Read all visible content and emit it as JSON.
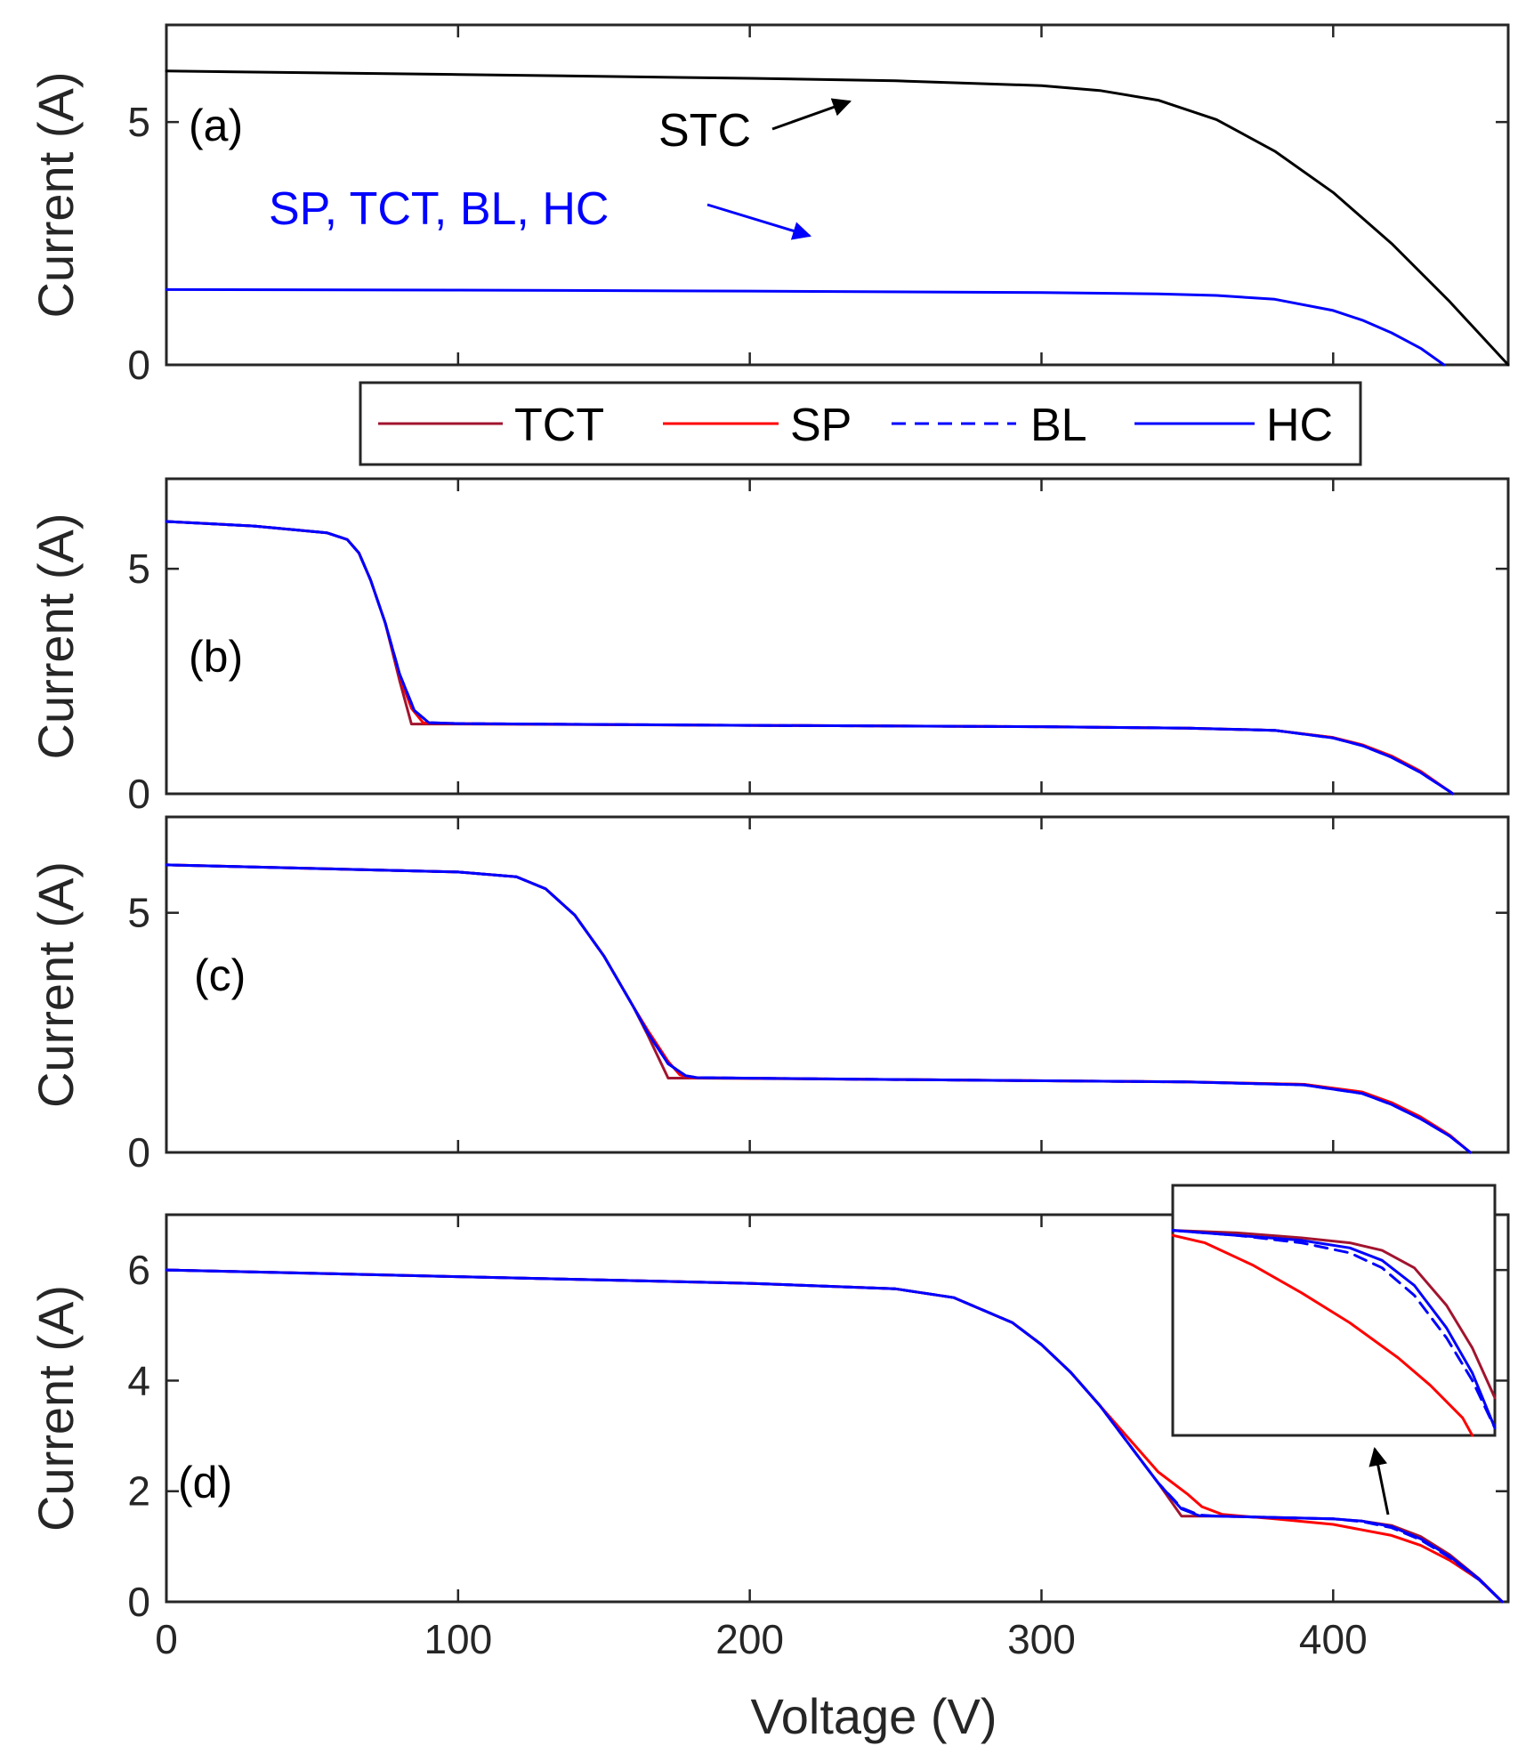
{
  "chart_data": {
    "type": "line",
    "xlabel": "Voltage (V)",
    "xlim": [
      0,
      460
    ],
    "xticks": [
      0,
      100,
      200,
      300,
      400
    ],
    "legend": {
      "placement": "top-center",
      "entries": [
        {
          "name": "TCT",
          "color": "#a2142f",
          "style": "solid"
        },
        {
          "name": "SP",
          "color": "#ff0000",
          "style": "solid"
        },
        {
          "name": "BL",
          "color": "#0000ff",
          "style": "dashed"
        },
        {
          "name": "HC",
          "color": "#0000ff",
          "style": "solid"
        }
      ]
    },
    "panels": [
      {
        "label": "(a)",
        "ylabel": "Current (A)",
        "ylim": [
          0,
          7
        ],
        "yticks": [
          0,
          5
        ],
        "annotations": [
          {
            "text": "STC",
            "color": "#000000"
          },
          {
            "text": "SP, TCT, BL, HC",
            "color": "#0000ff"
          }
        ],
        "series": [
          {
            "name": "STC",
            "color": "#000000",
            "style": "solid",
            "x": [
              0,
              100,
              200,
              250,
              300,
              320,
              340,
              360,
              380,
              400,
              420,
              440,
              460
            ],
            "y": [
              6.05,
              5.98,
              5.9,
              5.85,
              5.75,
              5.65,
              5.45,
              5.05,
              4.4,
              3.55,
              2.5,
              1.3,
              0
            ]
          },
          {
            "name": "SP, TCT, BL, HC",
            "color": "#0000ff",
            "style": "solid",
            "x": [
              0,
              100,
              200,
              300,
              340,
              360,
              380,
              400,
              410,
              420,
              430,
              438
            ],
            "y": [
              1.55,
              1.54,
              1.52,
              1.49,
              1.46,
              1.43,
              1.35,
              1.12,
              0.92,
              0.66,
              0.34,
              0
            ]
          }
        ]
      },
      {
        "label": "(b)",
        "ylabel": "Current (A)",
        "ylim": [
          0,
          7
        ],
        "yticks": [
          0,
          5
        ],
        "series": [
          {
            "name": "TCT",
            "color": "#a2142f",
            "style": "solid",
            "x": [
              0,
              30,
              55,
              62,
              66,
              70,
              75,
              80,
              84,
              86,
              100,
              200,
              300,
              350,
              380,
              400,
              410,
              420,
              430,
              440,
              441
            ],
            "y": [
              6.05,
              5.95,
              5.8,
              5.65,
              5.35,
              4.75,
              3.8,
              2.5,
              1.55,
              1.55,
              1.55,
              1.52,
              1.49,
              1.46,
              1.41,
              1.25,
              1.08,
              0.82,
              0.48,
              0.05,
              0
            ]
          },
          {
            "name": "SP",
            "color": "#ff0000",
            "style": "solid",
            "x": [
              0,
              30,
              55,
              62,
              66,
              70,
              75,
              80,
              84,
              88,
              100,
              200,
              300,
              350,
              380,
              400,
              410,
              420,
              430,
              440,
              441
            ],
            "y": [
              6.05,
              5.95,
              5.8,
              5.65,
              5.35,
              4.75,
              3.8,
              2.6,
              1.9,
              1.58,
              1.56,
              1.52,
              1.49,
              1.46,
              1.41,
              1.25,
              1.09,
              0.84,
              0.5,
              0.05,
              0
            ]
          },
          {
            "name": "BL",
            "color": "#0000ff",
            "style": "dashed",
            "x": [
              0,
              30,
              55,
              62,
              66,
              70,
              75,
              80,
              85,
              90,
              100,
              200,
              300,
              350,
              380,
              400,
              410,
              420,
              430,
              440,
              441
            ],
            "y": [
              6.05,
              5.95,
              5.8,
              5.65,
              5.35,
              4.75,
              3.8,
              2.65,
              1.85,
              1.58,
              1.56,
              1.52,
              1.49,
              1.46,
              1.41,
              1.24,
              1.07,
              0.81,
              0.47,
              0.05,
              0
            ]
          },
          {
            "name": "HC",
            "color": "#0000ff",
            "style": "solid",
            "x": [
              0,
              30,
              55,
              62,
              66,
              70,
              75,
              80,
              85,
              90,
              100,
              200,
              300,
              350,
              380,
              400,
              410,
              420,
              430,
              440,
              441
            ],
            "y": [
              6.05,
              5.95,
              5.8,
              5.65,
              5.35,
              4.75,
              3.8,
              2.65,
              1.85,
              1.58,
              1.56,
              1.52,
              1.49,
              1.46,
              1.41,
              1.24,
              1.07,
              0.81,
              0.47,
              0.05,
              0
            ]
          }
        ]
      },
      {
        "label": "(c)",
        "ylabel": "Current (A)",
        "ylim": [
          0,
          7
        ],
        "yticks": [
          0,
          5
        ],
        "series": [
          {
            "name": "TCT",
            "color": "#a2142f",
            "style": "solid",
            "x": [
              0,
              100,
              120,
              130,
              140,
              150,
              160,
              165,
              172,
              174,
              180,
              250,
              350,
              390,
              410,
              420,
              430,
              440,
              447
            ],
            "y": [
              6.0,
              5.85,
              5.75,
              5.5,
              4.95,
              4.1,
              3.05,
              2.45,
              1.55,
              1.55,
              1.55,
              1.52,
              1.47,
              1.42,
              1.25,
              1.02,
              0.72,
              0.35,
              0
            ]
          },
          {
            "name": "SP",
            "color": "#ff0000",
            "style": "solid",
            "x": [
              0,
              100,
              120,
              130,
              140,
              150,
              160,
              165,
              172,
              176,
              180,
              250,
              350,
              390,
              410,
              420,
              430,
              440,
              447
            ],
            "y": [
              6.0,
              5.85,
              5.75,
              5.5,
              4.95,
              4.1,
              3.05,
              2.55,
              1.9,
              1.62,
              1.56,
              1.52,
              1.47,
              1.42,
              1.26,
              1.04,
              0.74,
              0.36,
              0
            ]
          },
          {
            "name": "BL",
            "color": "#0000ff",
            "style": "dashed",
            "x": [
              0,
              100,
              120,
              130,
              140,
              150,
              160,
              165,
              172,
              178,
              182,
              250,
              350,
              390,
              410,
              420,
              430,
              440,
              447
            ],
            "y": [
              6.0,
              5.85,
              5.75,
              5.5,
              4.95,
              4.1,
              3.05,
              2.5,
              1.85,
              1.6,
              1.56,
              1.52,
              1.47,
              1.41,
              1.23,
              1.0,
              0.7,
              0.34,
              0
            ]
          },
          {
            "name": "HC",
            "color": "#0000ff",
            "style": "solid",
            "x": [
              0,
              100,
              120,
              130,
              140,
              150,
              160,
              165,
              172,
              178,
              182,
              250,
              350,
              390,
              410,
              420,
              430,
              440,
              447
            ],
            "y": [
              6.0,
              5.85,
              5.75,
              5.5,
              4.95,
              4.1,
              3.05,
              2.5,
              1.85,
              1.6,
              1.56,
              1.52,
              1.47,
              1.41,
              1.23,
              1.0,
              0.7,
              0.34,
              0
            ]
          }
        ]
      },
      {
        "label": "(d)",
        "ylabel": "Current (A)",
        "ylim": [
          0,
          7
        ],
        "yticks": [
          0,
          2,
          4,
          6
        ],
        "series": [
          {
            "name": "TCT",
            "color": "#a2142f",
            "style": "solid",
            "x": [
              0,
              100,
              200,
              250,
              270,
              290,
              300,
              310,
              320,
              330,
              340,
              348,
              350,
              360,
              400,
              410,
              420,
              430,
              440,
              450,
              458
            ],
            "y": [
              6.0,
              5.88,
              5.76,
              5.66,
              5.5,
              5.05,
              4.65,
              4.15,
              3.55,
              2.85,
              2.15,
              1.55,
              1.55,
              1.55,
              1.5,
              1.46,
              1.38,
              1.18,
              0.85,
              0.42,
              0
            ]
          },
          {
            "name": "SP",
            "color": "#ff0000",
            "style": "solid",
            "x": [
              0,
              100,
              200,
              250,
              270,
              290,
              300,
              310,
              320,
              330,
              340,
              350,
              355,
              362,
              380,
              400,
              420,
              430,
              440,
              450,
              458
            ],
            "y": [
              6.0,
              5.88,
              5.76,
              5.66,
              5.5,
              5.05,
              4.65,
              4.15,
              3.55,
              2.95,
              2.35,
              1.95,
              1.72,
              1.58,
              1.5,
              1.4,
              1.2,
              1.02,
              0.75,
              0.4,
              0
            ]
          },
          {
            "name": "BL",
            "color": "#0000ff",
            "style": "dashed",
            "x": [
              0,
              100,
              200,
              250,
              270,
              290,
              300,
              310,
              320,
              330,
              340,
              348,
              354,
              360,
              400,
              410,
              420,
              430,
              440,
              450,
              458
            ],
            "y": [
              6.0,
              5.88,
              5.76,
              5.66,
              5.5,
              5.05,
              4.65,
              4.15,
              3.55,
              2.85,
              2.15,
              1.7,
              1.57,
              1.55,
              1.5,
              1.45,
              1.34,
              1.12,
              0.8,
              0.4,
              0
            ]
          },
          {
            "name": "HC",
            "color": "#0000ff",
            "style": "solid",
            "x": [
              0,
              100,
              200,
              250,
              270,
              290,
              300,
              310,
              320,
              330,
              340,
              348,
              354,
              360,
              400,
              410,
              420,
              430,
              440,
              450,
              458
            ],
            "y": [
              6.0,
              5.88,
              5.76,
              5.66,
              5.5,
              5.05,
              4.65,
              4.15,
              3.55,
              2.85,
              2.15,
              1.68,
              1.56,
              1.55,
              1.5,
              1.46,
              1.36,
              1.14,
              0.82,
              0.41,
              0
            ]
          }
        ],
        "inset": {
          "placement": "top-right",
          "description_level": "zoom of knee near 400-458 V",
          "series": [
            {
              "name": "TCT",
              "color": "#a2142f",
              "style": "solid",
              "x": [
                0,
                0.2,
                0.4,
                0.55,
                0.65,
                0.75,
                0.85,
                0.93,
                1.0
              ],
              "y": [
                0.82,
                0.81,
                0.79,
                0.77,
                0.74,
                0.67,
                0.52,
                0.35,
                0.15
              ]
            },
            {
              "name": "SP",
              "color": "#ff0000",
              "style": "solid",
              "x": [
                0,
                0.1,
                0.25,
                0.4,
                0.55,
                0.7,
                0.8,
                0.9,
                0.93
              ],
              "y": [
                0.8,
                0.77,
                0.68,
                0.57,
                0.45,
                0.31,
                0.2,
                0.07,
                0.0
              ]
            },
            {
              "name": "BL",
              "color": "#0000ff",
              "style": "dashed",
              "x": [
                0,
                0.2,
                0.4,
                0.55,
                0.65,
                0.75,
                0.85,
                0.93,
                1.0
              ],
              "y": [
                0.82,
                0.8,
                0.77,
                0.73,
                0.67,
                0.56,
                0.39,
                0.22,
                0.03
              ]
            },
            {
              "name": "HC",
              "color": "#0000ff",
              "style": "solid",
              "x": [
                0,
                0.2,
                0.4,
                0.55,
                0.65,
                0.75,
                0.85,
                0.93,
                1.0
              ],
              "y": [
                0.82,
                0.8,
                0.78,
                0.75,
                0.7,
                0.6,
                0.43,
                0.25,
                0.03
              ]
            }
          ]
        }
      }
    ]
  }
}
